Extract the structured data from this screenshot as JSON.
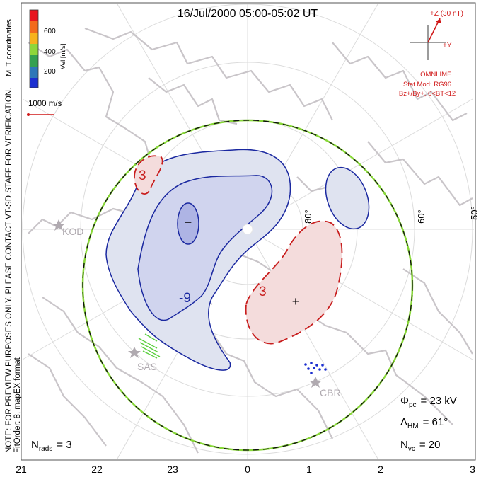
{
  "header": {
    "title": "16/Jul/2000 05:00-05:02 UT"
  },
  "side_note": {
    "line1": "NOTE: FOR PREVIEW PURPOSES ONLY. PLEASE CONTACT VT-SD STAFF FOR VERIFICATION.",
    "line2": "FitOrder: 8, mapEX format"
  },
  "coords_label": "MLT coordinates",
  "colorbar": {
    "label": "Vel [m/s]",
    "ticks": [
      "600",
      "400",
      "200"
    ],
    "colors": [
      "#e8141e",
      "#f26a1c",
      "#f7b21c",
      "#8fd63a",
      "#34a050",
      "#2e77b8",
      "#1c2fd0"
    ]
  },
  "vector_scale": {
    "label": "1000 m/s"
  },
  "imf": {
    "z_label": "+Z (30 nT)",
    "y_label": "+Y",
    "source": "OMNI IMF",
    "model": "Stat Mod: RG96",
    "bins": "Bz+/By+, 6<BT<12"
  },
  "latitude_labels": [
    "80°",
    "60°",
    "50°"
  ],
  "contour_labels": {
    "negative": "-9",
    "positive_left": "3",
    "positive_right": "3"
  },
  "markers": {
    "min": "−",
    "max": "+"
  },
  "stations": [
    "KOD",
    "SAS",
    "CBR"
  ],
  "stats": {
    "phi_symbol": "Φ",
    "phi_sub": "pc",
    "phi_value": "= 23 kV",
    "lambda_symbol": "Λ",
    "lambda_sub": "HM",
    "lambda_value": "= 61°",
    "nvc_symbol": "N",
    "nvc_sub": "vc",
    "nvc_value": "= 20",
    "nrads_symbol": "N",
    "nrads_sub": "rads",
    "nrads_value": "= 3"
  },
  "mlt_axis": [
    "21",
    "22",
    "23",
    "0",
    "1",
    "2",
    "3"
  ],
  "colors": {
    "negative_fill": "#dfe3f0",
    "negative_core": "#c3c8ec",
    "contour_blue": "#1a28a0",
    "positive_fill": "#f4dcdc",
    "contour_red": "#c81e1e",
    "continent": "#c9c5c9",
    "grid": "#dddddd",
    "boundary_green": "#88d838"
  }
}
